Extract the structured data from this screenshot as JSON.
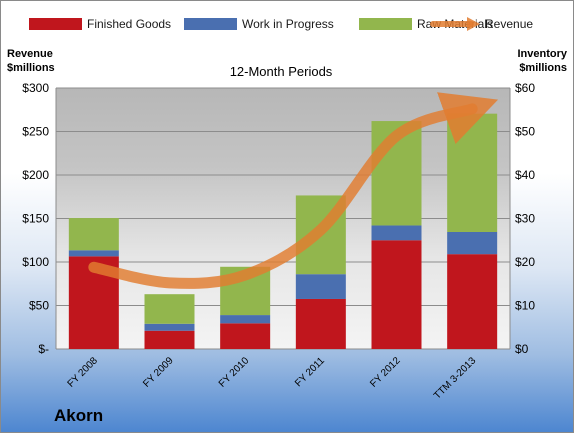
{
  "company": "Akorn",
  "chart_data": {
    "type": "bar",
    "stacked": true,
    "subtitle": "12-Month Periods",
    "left_axis_title": [
      "Revenue",
      "$millions"
    ],
    "right_axis_title": [
      "Inventory",
      "$millions"
    ],
    "categories": [
      "FY 2008",
      "FY 2009",
      "FY 2010",
      "FY 2011",
      "FY 2012",
      "TTM 3-2013"
    ],
    "left_ylim": [
      0,
      300
    ],
    "left_ticks": [
      0,
      50,
      100,
      150,
      200,
      250,
      300
    ],
    "left_tick_labels": [
      "$-",
      "$50",
      "$100",
      "$150",
      "$200",
      "$250",
      "$300"
    ],
    "right_ylim": [
      0,
      60
    ],
    "right_ticks": [
      0,
      10,
      20,
      30,
      40,
      50,
      60
    ],
    "right_tick_labels": [
      "$0",
      "$10",
      "$20",
      "$30",
      "$40",
      "$50",
      "$60"
    ],
    "series": [
      {
        "name": "Finished Goods",
        "axis": "right",
        "color": "#c0161d",
        "values": [
          21.3,
          4.2,
          5.9,
          11.5,
          25,
          21.8
        ]
      },
      {
        "name": "Work in Progress",
        "axis": "right",
        "color": "#4a6fb0",
        "values": [
          1.4,
          1.6,
          1.9,
          5.7,
          3.4,
          5.1
        ]
      },
      {
        "name": "Raw Materials",
        "axis": "right",
        "color": "#92b64d",
        "values": [
          7.4,
          6.8,
          11.1,
          18.1,
          24,
          27.2
        ]
      },
      {
        "name": "Revenue",
        "axis": "left",
        "type": "line",
        "color": "#e27c30",
        "values": [
          94,
          76,
          85,
          137,
          245,
          276
        ]
      }
    ],
    "legend_position": "top",
    "grid": true
  }
}
